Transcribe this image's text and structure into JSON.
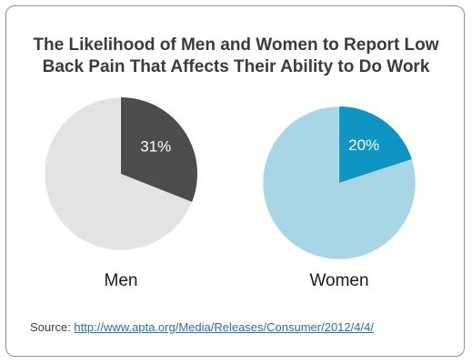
{
  "chart_data": {
    "type": "pie",
    "title_lines": [
      "The Likelihood of Men and Women to Report Low",
      "Back Pain That Affects Their Ability to Do Work"
    ],
    "pies": [
      {
        "name": "Men",
        "highlight_percent": 31,
        "highlight_label": "31%",
        "highlight_color": "#4d4d4d",
        "rest_color": "#e3e3e3"
      },
      {
        "name": "Women",
        "highlight_percent": 20,
        "highlight_label": "20%",
        "highlight_color": "#0f95c4",
        "rest_color": "#a8d6e6"
      }
    ]
  },
  "source": {
    "prefix": "Source: ",
    "link_text": "http://www.apta.org/Media/Releases/Consumer/2012/4/4/"
  }
}
